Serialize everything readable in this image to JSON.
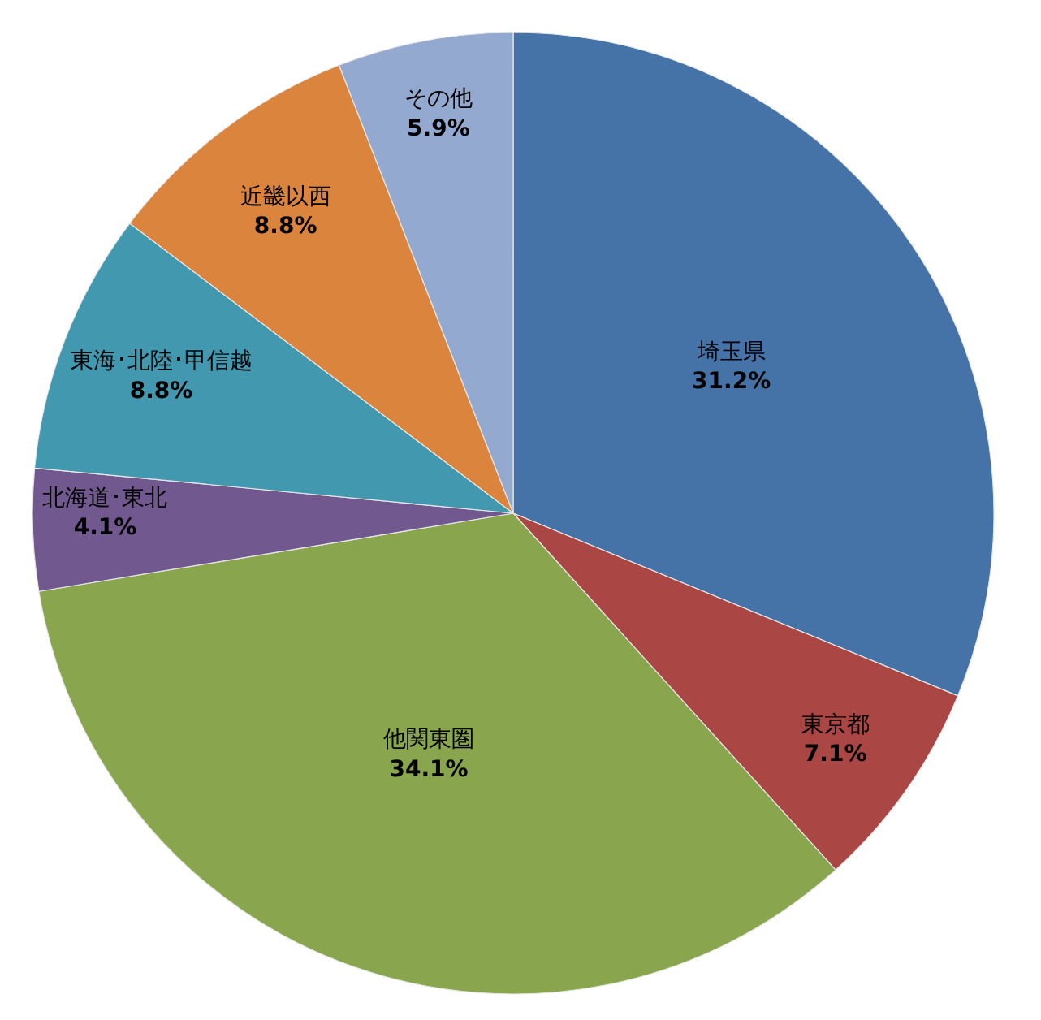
{
  "chart_data": {
    "type": "pie",
    "categories": [
      "埼玉県",
      "東京都",
      "他関東圏",
      "北海道･東北",
      "東海･北陸･甲信越",
      "近畿以西",
      "その他"
    ],
    "values": [
      31.2,
      7.1,
      34.1,
      4.1,
      8.8,
      8.8,
      5.9
    ],
    "value_labels": [
      "31.2%",
      "7.1%",
      "34.1%",
      "4.1%",
      "8.8%",
      "8.8%",
      "5.9%"
    ],
    "colors": [
      "#4572a7",
      "#aa4643",
      "#89a54e",
      "#71588f",
      "#4198af",
      "#db843d",
      "#93a9cf"
    ],
    "legend": false
  }
}
